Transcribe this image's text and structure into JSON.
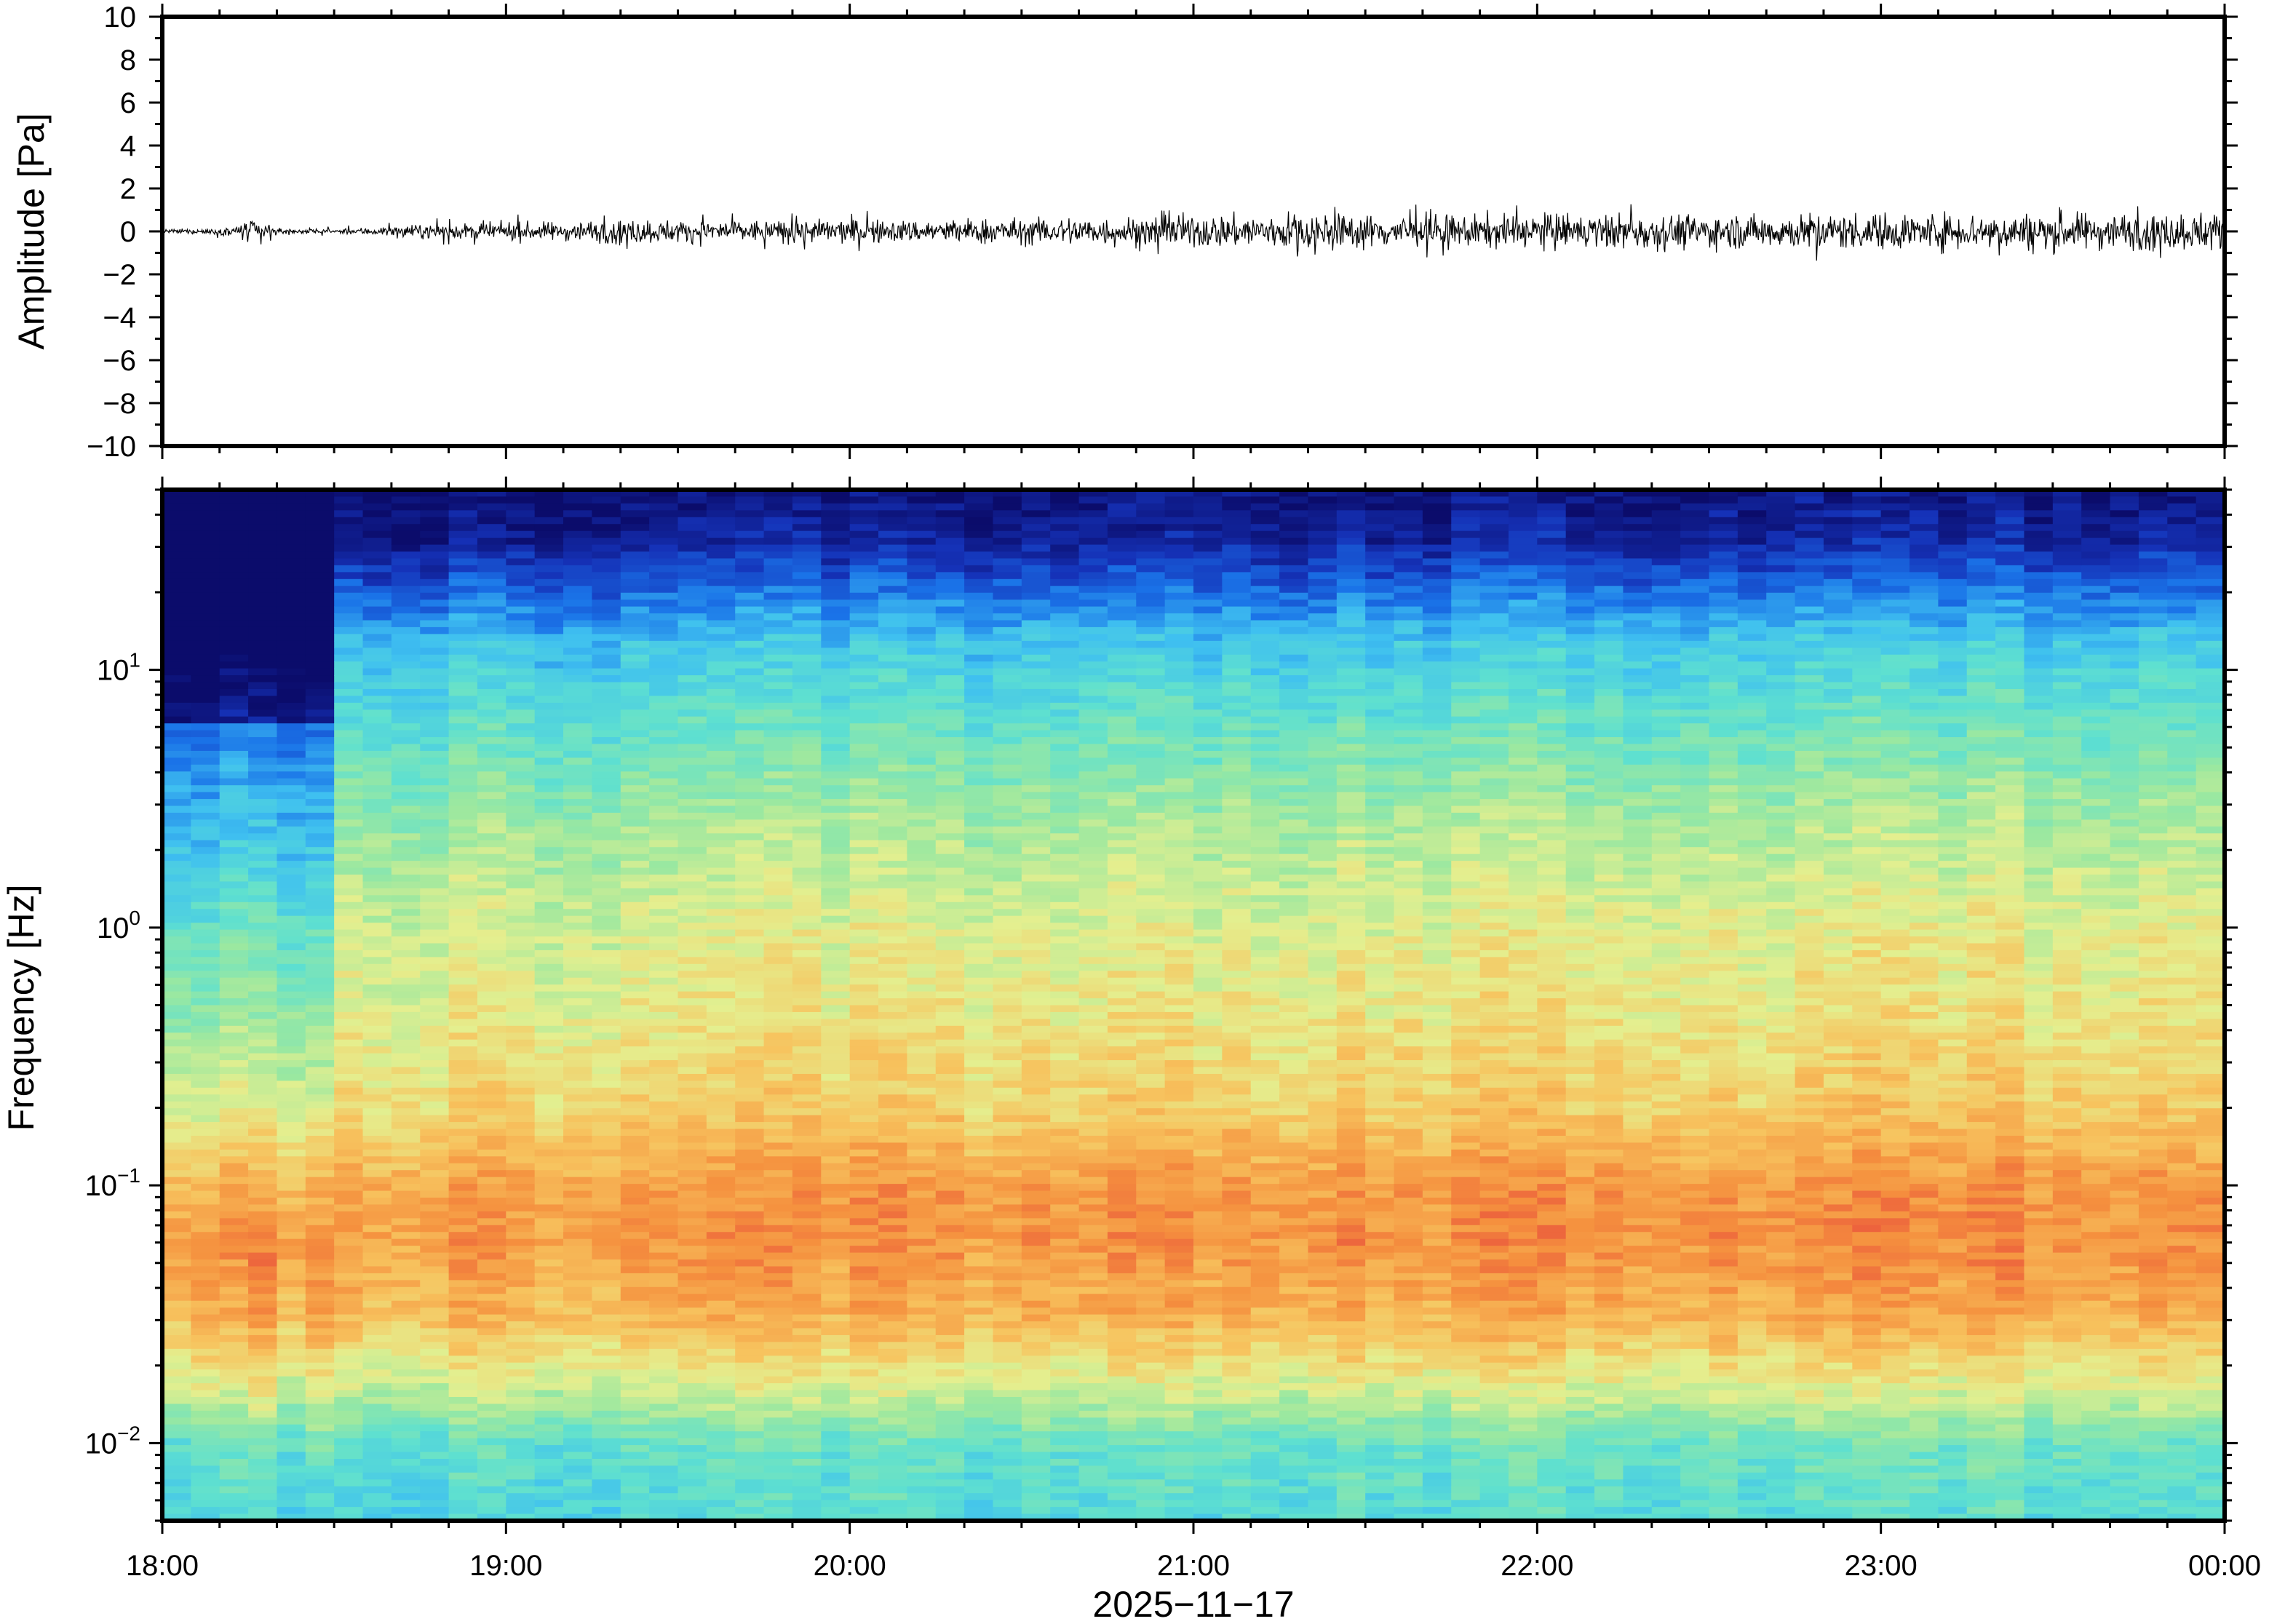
{
  "chart_data": [
    {
      "type": "line",
      "panel": "waveform",
      "ylabel": "Amplitude [Pa]",
      "ylim": [
        -10,
        10
      ],
      "yticks": [
        10,
        8,
        6,
        4,
        2,
        0,
        -2,
        -4,
        -6,
        -8,
        -10
      ],
      "ytick_labels": [
        "10",
        "8",
        "6",
        "4",
        "2",
        "0",
        "−2",
        "−4",
        "−6",
        "−8",
        "−10"
      ],
      "xlim": [
        "2025-11-17T18:00",
        "2025-11-18T00:00"
      ],
      "series": [
        {
          "x": [
            "18:00",
            "18:10",
            "18:15",
            "18:20",
            "18:30",
            "18:40",
            "18:50",
            "19:00",
            "19:10",
            "19:20",
            "19:30",
            "19:40",
            "19:50",
            "20:00",
            "20:10",
            "20:20",
            "20:30",
            "20:40",
            "20:50",
            "21:00",
            "21:10",
            "21:20",
            "21:30",
            "21:40",
            "21:50",
            "22:00",
            "22:10",
            "22:20",
            "22:30",
            "22:40",
            "22:50",
            "23:00",
            "23:10",
            "23:20",
            "23:30",
            "23:40",
            "23:50",
            "24:00"
          ],
          "envelope": [
            0.1,
            0.2,
            0.7,
            0.2,
            0.1,
            0.3,
            0.4,
            0.5,
            0.5,
            0.7,
            0.6,
            0.6,
            0.6,
            0.7,
            0.6,
            0.7,
            0.7,
            0.8,
            0.8,
            0.9,
            0.9,
            1.1,
            0.9,
            0.9,
            0.9,
            1.0,
            0.9,
            1.0,
            0.9,
            0.9,
            1.0,
            1.0,
            1.0,
            1.0,
            1.0,
            1.0,
            1.0,
            1.1
          ],
          "peak": [
            0.2,
            0.4,
            1.1,
            0.4,
            0.2,
            0.5,
            0.7,
            0.8,
            0.8,
            1.0,
            0.9,
            0.9,
            0.9,
            1.0,
            0.9,
            1.0,
            1.0,
            1.2,
            1.2,
            1.3,
            1.4,
            1.5,
            1.3,
            1.3,
            1.3,
            1.5,
            1.3,
            1.7,
            1.3,
            1.3,
            1.4,
            1.4,
            1.4,
            1.4,
            1.4,
            1.5,
            1.5,
            1.8
          ]
        }
      ]
    },
    {
      "type": "heatmap",
      "panel": "spectrogram",
      "ylabel": "Frequency [Hz]",
      "xlabel": "2025−11−17",
      "yscale": "log",
      "ylim": [
        0.005,
        50
      ],
      "yticks": [
        0.01,
        0.1,
        1,
        10
      ],
      "ytick_labels": [
        {
          "base": "10",
          "exp": "−2"
        },
        {
          "base": "10",
          "exp": "−1"
        },
        {
          "base": "10",
          "exp": "0"
        },
        {
          "base": "10",
          "exp": "1"
        }
      ],
      "xticks": [
        "18:00",
        "19:00",
        "20:00",
        "21:00",
        "22:00",
        "23:00",
        "00:00"
      ],
      "colormap": [
        "#0b0c6b",
        "#1532b8",
        "#1a73e8",
        "#3fc0f0",
        "#5ee0d0",
        "#9be8a0",
        "#e4ef8f",
        "#f7c35e",
        "#f5903e",
        "#e84a3c"
      ]
    }
  ]
}
